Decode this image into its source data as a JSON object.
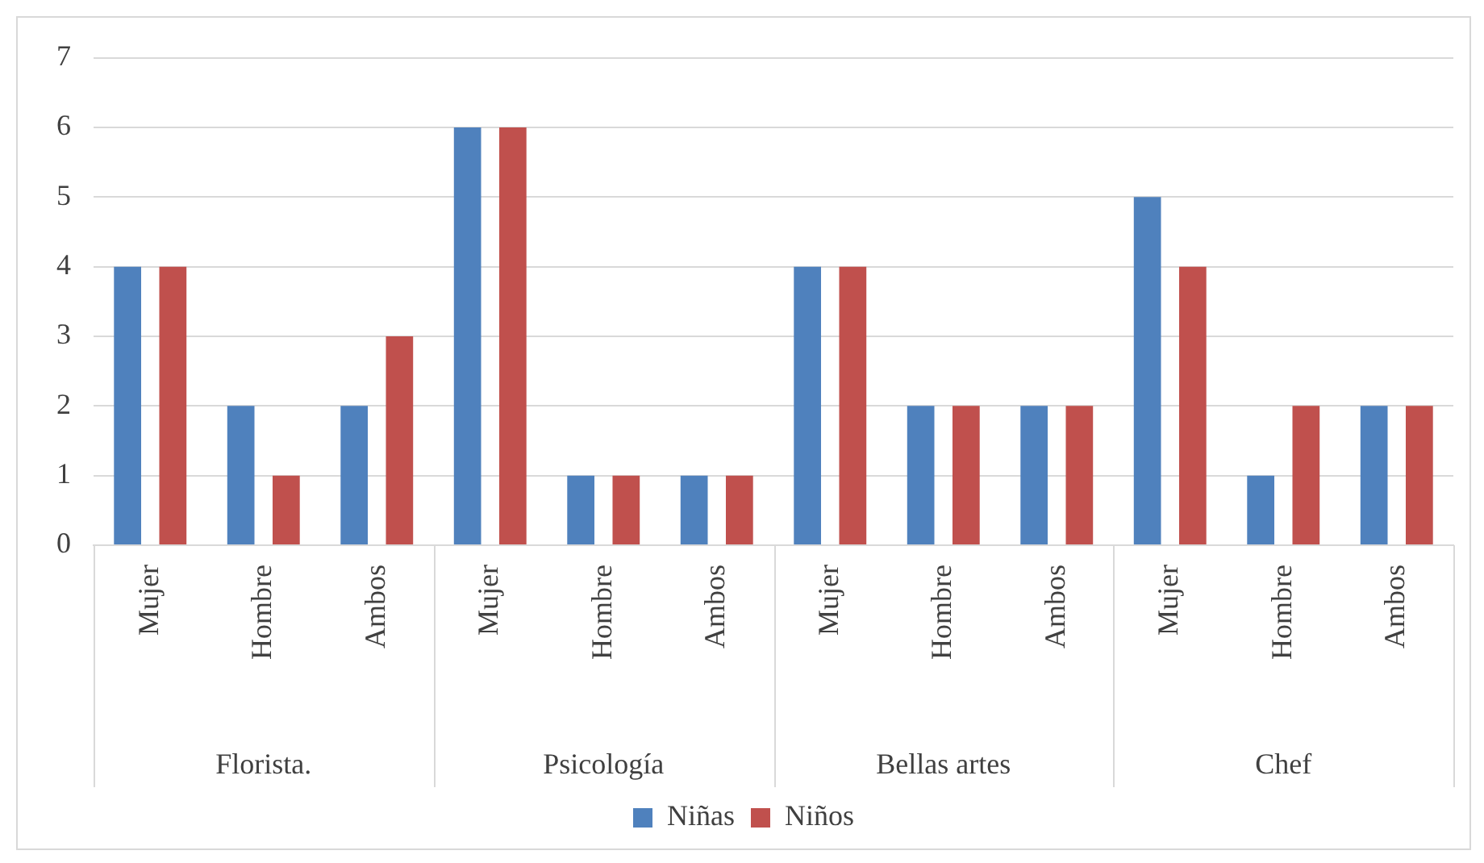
{
  "chart_data": {
    "type": "bar",
    "categories": [
      "Mujer",
      "Hombre",
      "Ambos",
      "Mujer",
      "Hombre",
      "Ambos",
      "Mujer",
      "Hombre",
      "Ambos",
      "Mujer",
      "Hombre",
      "Ambos"
    ],
    "series": [
      {
        "name": "Niñas",
        "color": "#4f81bd",
        "values": [
          4,
          2,
          2,
          6,
          1,
          1,
          4,
          2,
          2,
          5,
          1,
          2
        ]
      },
      {
        "name": "Niños",
        "color": "#c0504d",
        "values": [
          4,
          1,
          3,
          6,
          1,
          1,
          4,
          2,
          2,
          4,
          2,
          2
        ]
      }
    ],
    "annotations": [
      "Florista.",
      "Psicología",
      "Bellas artes",
      "Chef"
    ],
    "ylim": [
      0,
      7
    ],
    "yticks": [
      0,
      1,
      2,
      3,
      4,
      5,
      6,
      7
    ],
    "grid": "y",
    "legend": "bottom"
  }
}
